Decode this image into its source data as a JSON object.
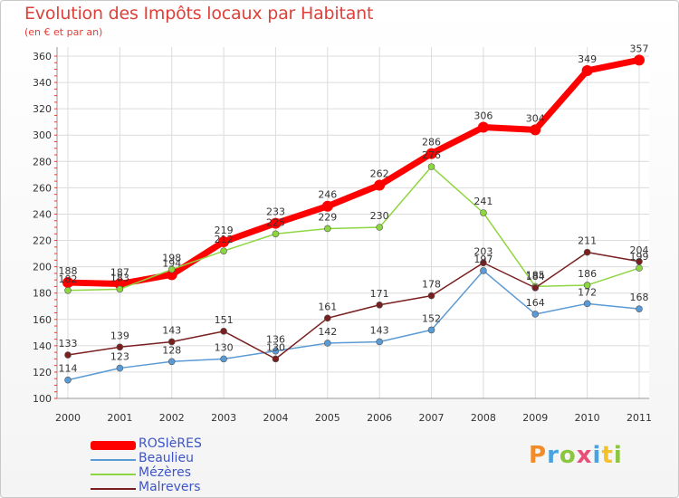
{
  "title": "Evolution des Impôts locaux par Habitant",
  "subtitle": "(en € et par an)",
  "logo_text": "Proxiti",
  "chart_data": {
    "type": "line",
    "title": "Evolution des Impôts locaux par Habitant",
    "subtitle": "(en € et par an)",
    "x": [
      "2000",
      "2001",
      "2002",
      "2003",
      "2004",
      "2005",
      "2006",
      "2007",
      "2008",
      "2009",
      "2010",
      "2011"
    ],
    "y_ticks": [
      100,
      120,
      140,
      160,
      180,
      200,
      220,
      240,
      260,
      280,
      300,
      320,
      340,
      360
    ],
    "ylim": [
      100,
      360
    ],
    "grid": true,
    "legend_position": "bottom-left",
    "series": [
      {
        "name": "ROSIèRES",
        "color": "#ff0000",
        "values": [
          188,
          187,
          194,
          219,
          233,
          246,
          262,
          286,
          306,
          304,
          349,
          357
        ]
      },
      {
        "name": "Beaulieu",
        "color": "#5b9bd5",
        "values": [
          114,
          123,
          128,
          130,
          136,
          142,
          143,
          152,
          197,
          164,
          172,
          168
        ]
      },
      {
        "name": "Mézères",
        "color": "#8ed641",
        "values": [
          182,
          183,
          198,
          212,
          225,
          229,
          230,
          276,
          241,
          185,
          186,
          199
        ]
      },
      {
        "name": "Malrevers",
        "color": "#7a1f1f",
        "values": [
          133,
          139,
          143,
          151,
          130,
          161,
          171,
          178,
          203,
          184,
          211,
          204
        ]
      }
    ]
  }
}
